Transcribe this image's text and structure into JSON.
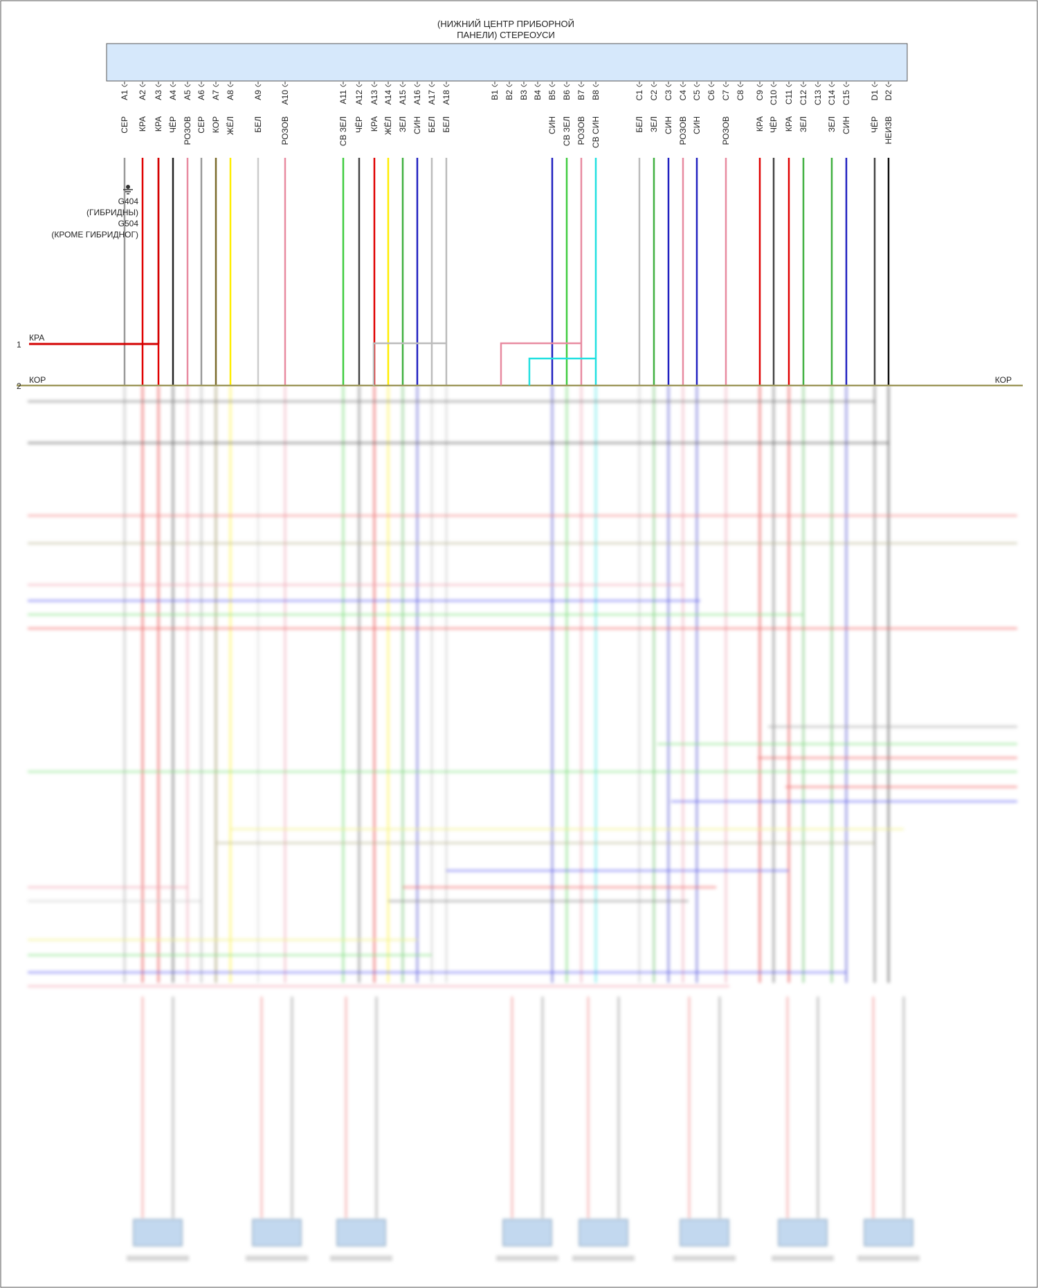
{
  "unit": {
    "title_lines": [
      "(НИЖНИЙ ЦЕНТР ПРИБОРНОЙ",
      "ПАНЕЛИ) СТЕРЕОУСИ"
    ]
  },
  "ground": {
    "lines": [
      "G404",
      "(ГИБРИДНЫ)",
      "G504",
      "(КРОМЕ ГИБРИДНОГ)"
    ]
  },
  "left_bus": [
    {
      "num": "1",
      "label": "КРА",
      "color": "#d40000"
    },
    {
      "num": "2",
      "label": "КОР",
      "color": "#a09a60"
    }
  ],
  "right_bus": [
    {
      "label": "КОР",
      "color": "#a09a60"
    }
  ],
  "pins": [
    {
      "pin": "A1",
      "wire": "СЕР",
      "color": "#999999"
    },
    {
      "pin": "A2",
      "wire": "КРА",
      "color": "#e00000"
    },
    {
      "pin": "A3",
      "wire": "КРА",
      "color": "#e00000"
    },
    {
      "pin": "A4",
      "wire": "ЧЁР",
      "color": "#222222"
    },
    {
      "pin": "A5",
      "wire": "РОЗОВ",
      "color": "#e88aa0"
    },
    {
      "pin": "A6",
      "wire": "СЕР",
      "color": "#999999"
    },
    {
      "pin": "A7",
      "wire": "КОР",
      "color": "#7a6a2a"
    },
    {
      "pin": "A8",
      "wire": "ЖЁЛ",
      "color": "#ffee00"
    },
    {
      "pin": "A9",
      "wire": "БЕЛ",
      "color": "#cccccc"
    },
    {
      "pin": "A10",
      "wire": "РОЗОВ",
      "color": "#e88aa0"
    },
    {
      "pin": "A11",
      "wire": "СВ ЗЕЛ",
      "color": "#40cc40"
    },
    {
      "pin": "A12",
      "wire": "ЧЁР",
      "color": "#444444"
    },
    {
      "pin": "A13",
      "wire": "КРА",
      "color": "#e00000"
    },
    {
      "pin": "A14",
      "wire": "ЖЁЛ",
      "color": "#ffee00"
    },
    {
      "pin": "A15",
      "wire": "ЗЕЛ",
      "color": "#40b040"
    },
    {
      "pin": "A16",
      "wire": "СИН",
      "color": "#2020c0"
    },
    {
      "pin": "A17",
      "wire": "БЕЛ",
      "color": "#bbbbbb"
    },
    {
      "pin": "A18",
      "wire": "БЕЛ",
      "color": "#bbbbbb"
    },
    {
      "pin": "B1",
      "wire": "",
      "color": ""
    },
    {
      "pin": "B2",
      "wire": "",
      "color": ""
    },
    {
      "pin": "B3",
      "wire": "",
      "color": ""
    },
    {
      "pin": "B4",
      "wire": "",
      "color": ""
    },
    {
      "pin": "B5",
      "wire": "СИН",
      "color": "#2020c0"
    },
    {
      "pin": "B6",
      "wire": "СВ ЗЕЛ",
      "color": "#40cc40"
    },
    {
      "pin": "B7",
      "wire": "РОЗОВ",
      "color": "#e88aa0"
    },
    {
      "pin": "B8",
      "wire": "СВ СИН",
      "color": "#20e0e0"
    },
    {
      "pin": "C1",
      "wire": "БЕЛ",
      "color": "#bbbbbb"
    },
    {
      "pin": "C2",
      "wire": "ЗЕЛ",
      "color": "#40b040"
    },
    {
      "pin": "C3",
      "wire": "СИН",
      "color": "#2020c0"
    },
    {
      "pin": "C4",
      "wire": "РОЗОВ",
      "color": "#e88aa0"
    },
    {
      "pin": "C5",
      "wire": "СИН",
      "color": "#2020c0"
    },
    {
      "pin": "C6",
      "wire": "",
      "color": ""
    },
    {
      "pin": "C7",
      "wire": "РОЗОВ",
      "color": "#e88aa0"
    },
    {
      "pin": "C8",
      "wire": "",
      "color": ""
    },
    {
      "pin": "C9",
      "wire": "КРА",
      "color": "#e00000"
    },
    {
      "pin": "C10",
      "wire": "ЧЁР",
      "color": "#444444"
    },
    {
      "pin": "C11",
      "wire": "КРА",
      "color": "#e00000"
    },
    {
      "pin": "C12",
      "wire": "ЗЕЛ",
      "color": "#40b040"
    },
    {
      "pin": "C13",
      "wire": "",
      "color": ""
    },
    {
      "pin": "C14",
      "wire": "ЗЕЛ",
      "color": "#40b040"
    },
    {
      "pin": "C15",
      "wire": "СИН",
      "color": "#2020c0"
    },
    {
      "pin": "D1",
      "wire": "ЧЁР",
      "color": "#444444"
    },
    {
      "pin": "D2",
      "wire": "НЕИЗВ",
      "color": "#111111"
    }
  ]
}
